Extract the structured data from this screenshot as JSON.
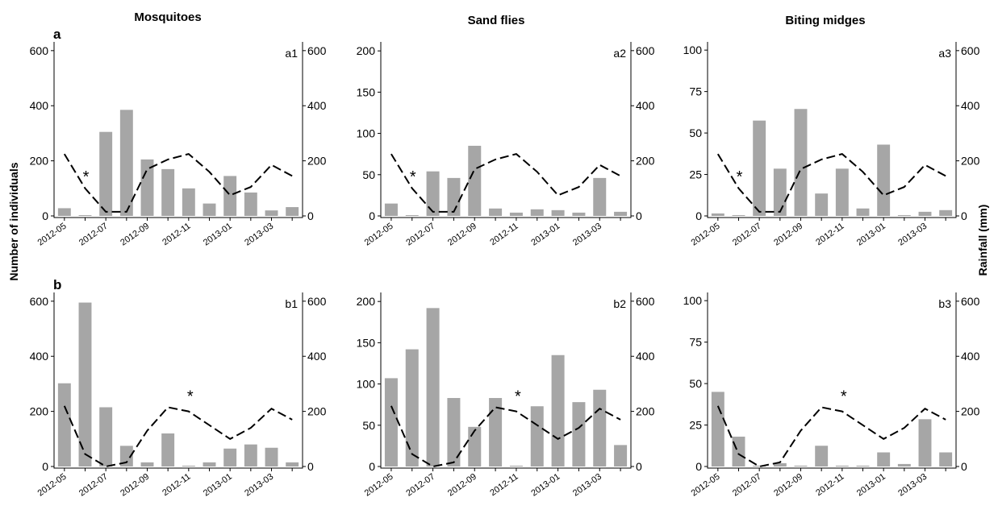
{
  "figure": {
    "column_titles": [
      "Mosquitoes",
      "Sand flies",
      "Biting midges"
    ],
    "row_labels": [
      "a",
      "b"
    ],
    "left_ylabel": "Number of individuals",
    "right_ylabel": "Rainfall (mm)",
    "x_tick_labels": [
      "2012-05",
      "2012-07",
      "2012-09",
      "2012-11",
      "2013-01",
      "2013-03"
    ],
    "asterisk": "*"
  },
  "colors": {
    "bar": "#a6a6a6",
    "line": "#000000",
    "axis": "#000000"
  },
  "chart_data": [
    {
      "type": "bar",
      "panel": "a1",
      "row": "a",
      "column": "Mosquitoes",
      "x": [
        "2012-05",
        "2012-06",
        "2012-07",
        "2012-08",
        "2012-09",
        "2012-10",
        "2012-11",
        "2012-12",
        "2013-01",
        "2013-02",
        "2013-03",
        "2013-04"
      ],
      "values": [
        28,
        2,
        305,
        385,
        205,
        170,
        100,
        45,
        145,
        85,
        20,
        32
      ],
      "rainfall_mm": [
        225,
        100,
        15,
        15,
        170,
        205,
        225,
        160,
        75,
        105,
        185,
        145
      ],
      "ylim": [
        0,
        620
      ],
      "yticks": [
        0,
        200,
        400,
        600
      ],
      "y2lim": [
        0,
        620
      ],
      "y2ticks": [
        0,
        200,
        400,
        600
      ],
      "asterisk_month": "2012-06"
    },
    {
      "type": "bar",
      "panel": "a2",
      "row": "a",
      "column": "Sand flies",
      "x": [
        "2012-05",
        "2012-06",
        "2012-07",
        "2012-08",
        "2012-09",
        "2012-10",
        "2012-11",
        "2012-12",
        "2013-01",
        "2013-02",
        "2013-03",
        "2013-04"
      ],
      "values": [
        15,
        0.5,
        54,
        46,
        85,
        9,
        4,
        8,
        7,
        4,
        46,
        5
      ],
      "rainfall_mm": [
        225,
        100,
        15,
        15,
        170,
        205,
        225,
        160,
        75,
        105,
        185,
        145
      ],
      "ylim": [
        0,
        207
      ],
      "yticks": [
        0,
        50,
        100,
        150,
        200
      ],
      "y2lim": [
        0,
        620
      ],
      "y2ticks": [
        0,
        200,
        400,
        600
      ],
      "asterisk_month": "2012-06"
    },
    {
      "type": "bar",
      "panel": "a3",
      "row": "a",
      "column": "Biting midges",
      "x": [
        "2012-05",
        "2012-06",
        "2012-07",
        "2012-08",
        "2012-09",
        "2012-10",
        "2012-11",
        "2012-12",
        "2013-01",
        "2013-02",
        "2013-03",
        "2013-04"
      ],
      "values": [
        1.5,
        0.5,
        57.5,
        28.5,
        64.5,
        13.5,
        28.5,
        4.5,
        43,
        0.5,
        2.5,
        3.5
      ],
      "rainfall_mm": [
        225,
        100,
        15,
        15,
        170,
        205,
        225,
        160,
        75,
        105,
        185,
        145
      ],
      "ylim": [
        0,
        103
      ],
      "yticks": [
        0,
        25,
        50,
        75,
        100
      ],
      "y2lim": [
        0,
        620
      ],
      "y2ticks": [
        0,
        200,
        400,
        600
      ],
      "asterisk_month": "2012-06"
    },
    {
      "type": "bar",
      "panel": "b1",
      "row": "b",
      "column": "Mosquitoes",
      "x": [
        "2012-05",
        "2012-06",
        "2012-07",
        "2012-08",
        "2012-09",
        "2012-10",
        "2012-11",
        "2012-12",
        "2013-01",
        "2013-02",
        "2013-03",
        "2013-04"
      ],
      "values": [
        302,
        595,
        215,
        75,
        15,
        120,
        2,
        15,
        65,
        80,
        68,
        15
      ],
      "rainfall_mm": [
        220,
        45,
        0,
        15,
        130,
        215,
        200,
        150,
        100,
        140,
        210,
        170
      ],
      "ylim": [
        0,
        620
      ],
      "yticks": [
        0,
        200,
        400,
        600
      ],
      "y2lim": [
        0,
        620
      ],
      "y2ticks": [
        0,
        200,
        400,
        600
      ],
      "asterisk_month": "2012-11"
    },
    {
      "type": "bar",
      "panel": "b2",
      "row": "b",
      "column": "Sand flies",
      "x": [
        "2012-05",
        "2012-06",
        "2012-07",
        "2012-08",
        "2012-09",
        "2012-10",
        "2012-11",
        "2012-12",
        "2013-01",
        "2013-02",
        "2013-03",
        "2013-04"
      ],
      "values": [
        107,
        142,
        192,
        83,
        48,
        83,
        0.5,
        73,
        135,
        78,
        93,
        26
      ],
      "rainfall_mm": [
        220,
        45,
        0,
        15,
        130,
        215,
        200,
        150,
        100,
        140,
        210,
        170
      ],
      "ylim": [
        0,
        207
      ],
      "yticks": [
        0,
        50,
        100,
        150,
        200
      ],
      "y2lim": [
        0,
        620
      ],
      "y2ticks": [
        0,
        200,
        400,
        600
      ],
      "asterisk_month": "2012-11"
    },
    {
      "type": "bar",
      "panel": "b3",
      "row": "b",
      "column": "Biting midges",
      "x": [
        "2012-05",
        "2012-06",
        "2012-07",
        "2012-08",
        "2012-09",
        "2012-10",
        "2012-11",
        "2012-12",
        "2013-01",
        "2013-02",
        "2013-03",
        "2013-04"
      ],
      "values": [
        45,
        18,
        0.5,
        2,
        0.5,
        12.5,
        0.5,
        0.5,
        8.5,
        1.5,
        28.5,
        8.5
      ],
      "rainfall_mm": [
        220,
        45,
        0,
        15,
        130,
        215,
        200,
        150,
        100,
        140,
        210,
        170
      ],
      "ylim": [
        0,
        103
      ],
      "yticks": [
        0,
        25,
        50,
        75,
        100
      ],
      "y2lim": [
        0,
        620
      ],
      "y2ticks": [
        0,
        200,
        400,
        600
      ],
      "asterisk_month": "2012-11"
    }
  ]
}
